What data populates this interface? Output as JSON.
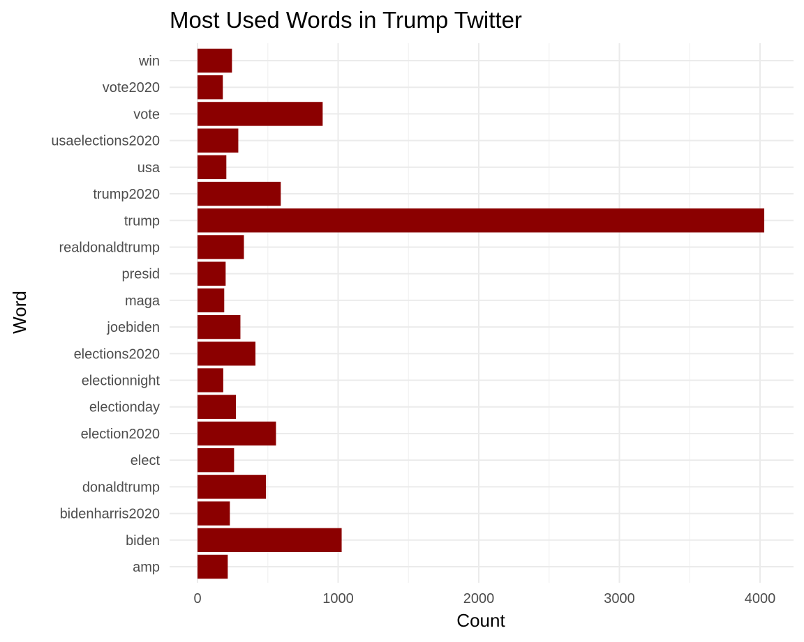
{
  "chart_data": {
    "type": "bar",
    "orientation": "horizontal",
    "title": "Most Used Words in Trump Twitter",
    "xlabel": "Count",
    "ylabel": "Word",
    "bar_color": "#8b0000",
    "grid": true,
    "xlim": [
      -200,
      4230
    ],
    "x_ticks": [
      0,
      1000,
      2000,
      3000,
      4000
    ],
    "categories": [
      "amp",
      "biden",
      "bidenharris2020",
      "donaldtrump",
      "elect",
      "election2020",
      "electionday",
      "electionnight",
      "elections2020",
      "joebiden",
      "maga",
      "presid",
      "realdonaldtrump",
      "trump",
      "trump2020",
      "usa",
      "usaelections2020",
      "vote",
      "vote2020",
      "win"
    ],
    "values": [
      215,
      1025,
      230,
      487,
      260,
      558,
      273,
      183,
      412,
      305,
      190,
      200,
      330,
      4030,
      592,
      205,
      290,
      890,
      180,
      245
    ]
  }
}
